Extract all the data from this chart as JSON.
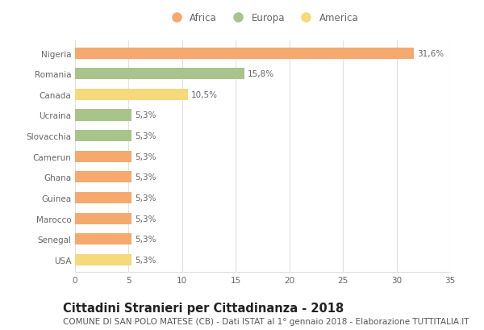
{
  "title": "Cittadini Stranieri per Cittadinanza - 2018",
  "subtitle": "COMUNE DI SAN POLO MATESE (CB) - Dati ISTAT al 1° gennaio 2018 - Elaborazione TUTTITALIA.IT",
  "categories": [
    "Nigeria",
    "Romania",
    "Canada",
    "Ucraina",
    "Slovacchia",
    "Camerun",
    "Ghana",
    "Guinea",
    "Marocco",
    "Senegal",
    "USA"
  ],
  "values": [
    31.6,
    15.8,
    10.5,
    5.3,
    5.3,
    5.3,
    5.3,
    5.3,
    5.3,
    5.3,
    5.3
  ],
  "labels": [
    "31,6%",
    "15,8%",
    "10,5%",
    "5,3%",
    "5,3%",
    "5,3%",
    "5,3%",
    "5,3%",
    "5,3%",
    "5,3%",
    "5,3%"
  ],
  "colors": [
    "#F5A96E",
    "#A8C48A",
    "#F5D97A",
    "#A8C48A",
    "#A8C48A",
    "#F5A96E",
    "#F5A96E",
    "#F5A96E",
    "#F5A96E",
    "#F5A96E",
    "#F5D97A"
  ],
  "legend": [
    {
      "label": "Africa",
      "color": "#F5A96E"
    },
    {
      "label": "Europa",
      "color": "#A8C48A"
    },
    {
      "label": "America",
      "color": "#F5D97A"
    }
  ],
  "xlim": [
    0,
    35
  ],
  "xticks": [
    0,
    5,
    10,
    15,
    20,
    25,
    30,
    35
  ],
  "background_color": "#ffffff",
  "grid_color": "#e0e0e0",
  "bar_height": 0.55,
  "title_fontsize": 10.5,
  "subtitle_fontsize": 7.5,
  "label_fontsize": 7.5,
  "tick_fontsize": 7.5,
  "legend_fontsize": 8.5
}
